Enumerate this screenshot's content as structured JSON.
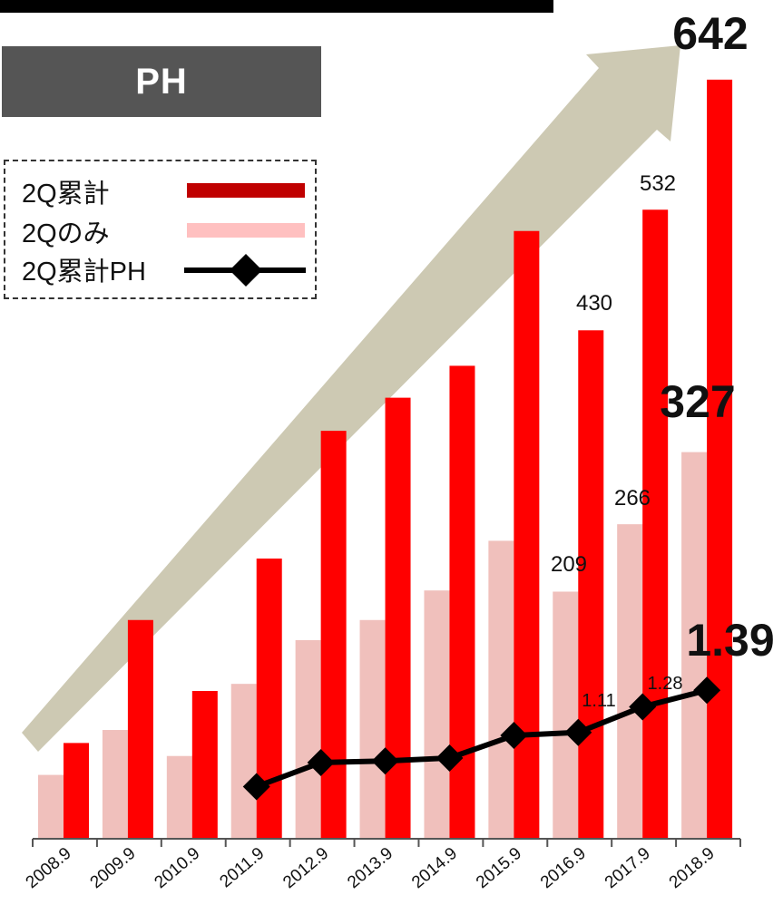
{
  "header": {
    "title_box": "PH"
  },
  "legend": {
    "items": [
      {
        "label": "2Q累計",
        "color": "#c00000",
        "kind": "bar"
      },
      {
        "label": "2Qのみ",
        "color": "#ffc0c0",
        "kind": "bar"
      },
      {
        "label": "2Q累計PH",
        "color": "#000000",
        "kind": "line"
      }
    ]
  },
  "colors": {
    "cumulative_bar": "#ff0000",
    "quarter_bar": "#f0c0bc",
    "line": "#000000",
    "arrow": "#cdc9b3"
  },
  "chart_data": {
    "type": "bar",
    "categories": [
      "2008.9",
      "2009.9",
      "2010.9",
      "2011.9",
      "2012.9",
      "2013.9",
      "2014.9",
      "2015.9",
      "2016.9",
      "2017.9",
      "2018.9"
    ],
    "series": [
      {
        "name": "2Q累計",
        "type": "bar",
        "values": [
          81,
          185,
          125,
          237,
          345,
          373,
          400,
          514,
          430,
          532,
          642
        ]
      },
      {
        "name": "2Qのみ",
        "type": "bar",
        "values": [
          54,
          92,
          70,
          131,
          168,
          185,
          210,
          252,
          209,
          266,
          327
        ]
      },
      {
        "name": "2Q累計PH",
        "type": "line",
        "values": [
          null,
          null,
          null,
          0.75,
          0.91,
          0.92,
          0.94,
          1.09,
          1.11,
          1.28,
          1.39
        ]
      }
    ],
    "data_labels": {
      "2Q累計": {
        "8": "430",
        "9": "532",
        "10": "642"
      },
      "2Qのみ": {
        "8": "209",
        "9": "266",
        "10": "327"
      },
      "2Q累計PH": {
        "8": "1.11",
        "9": "1.28",
        "10": "1.39"
      }
    },
    "annotations": [
      "upward trend arrow"
    ],
    "grid": false,
    "legend_position": "top-left"
  }
}
